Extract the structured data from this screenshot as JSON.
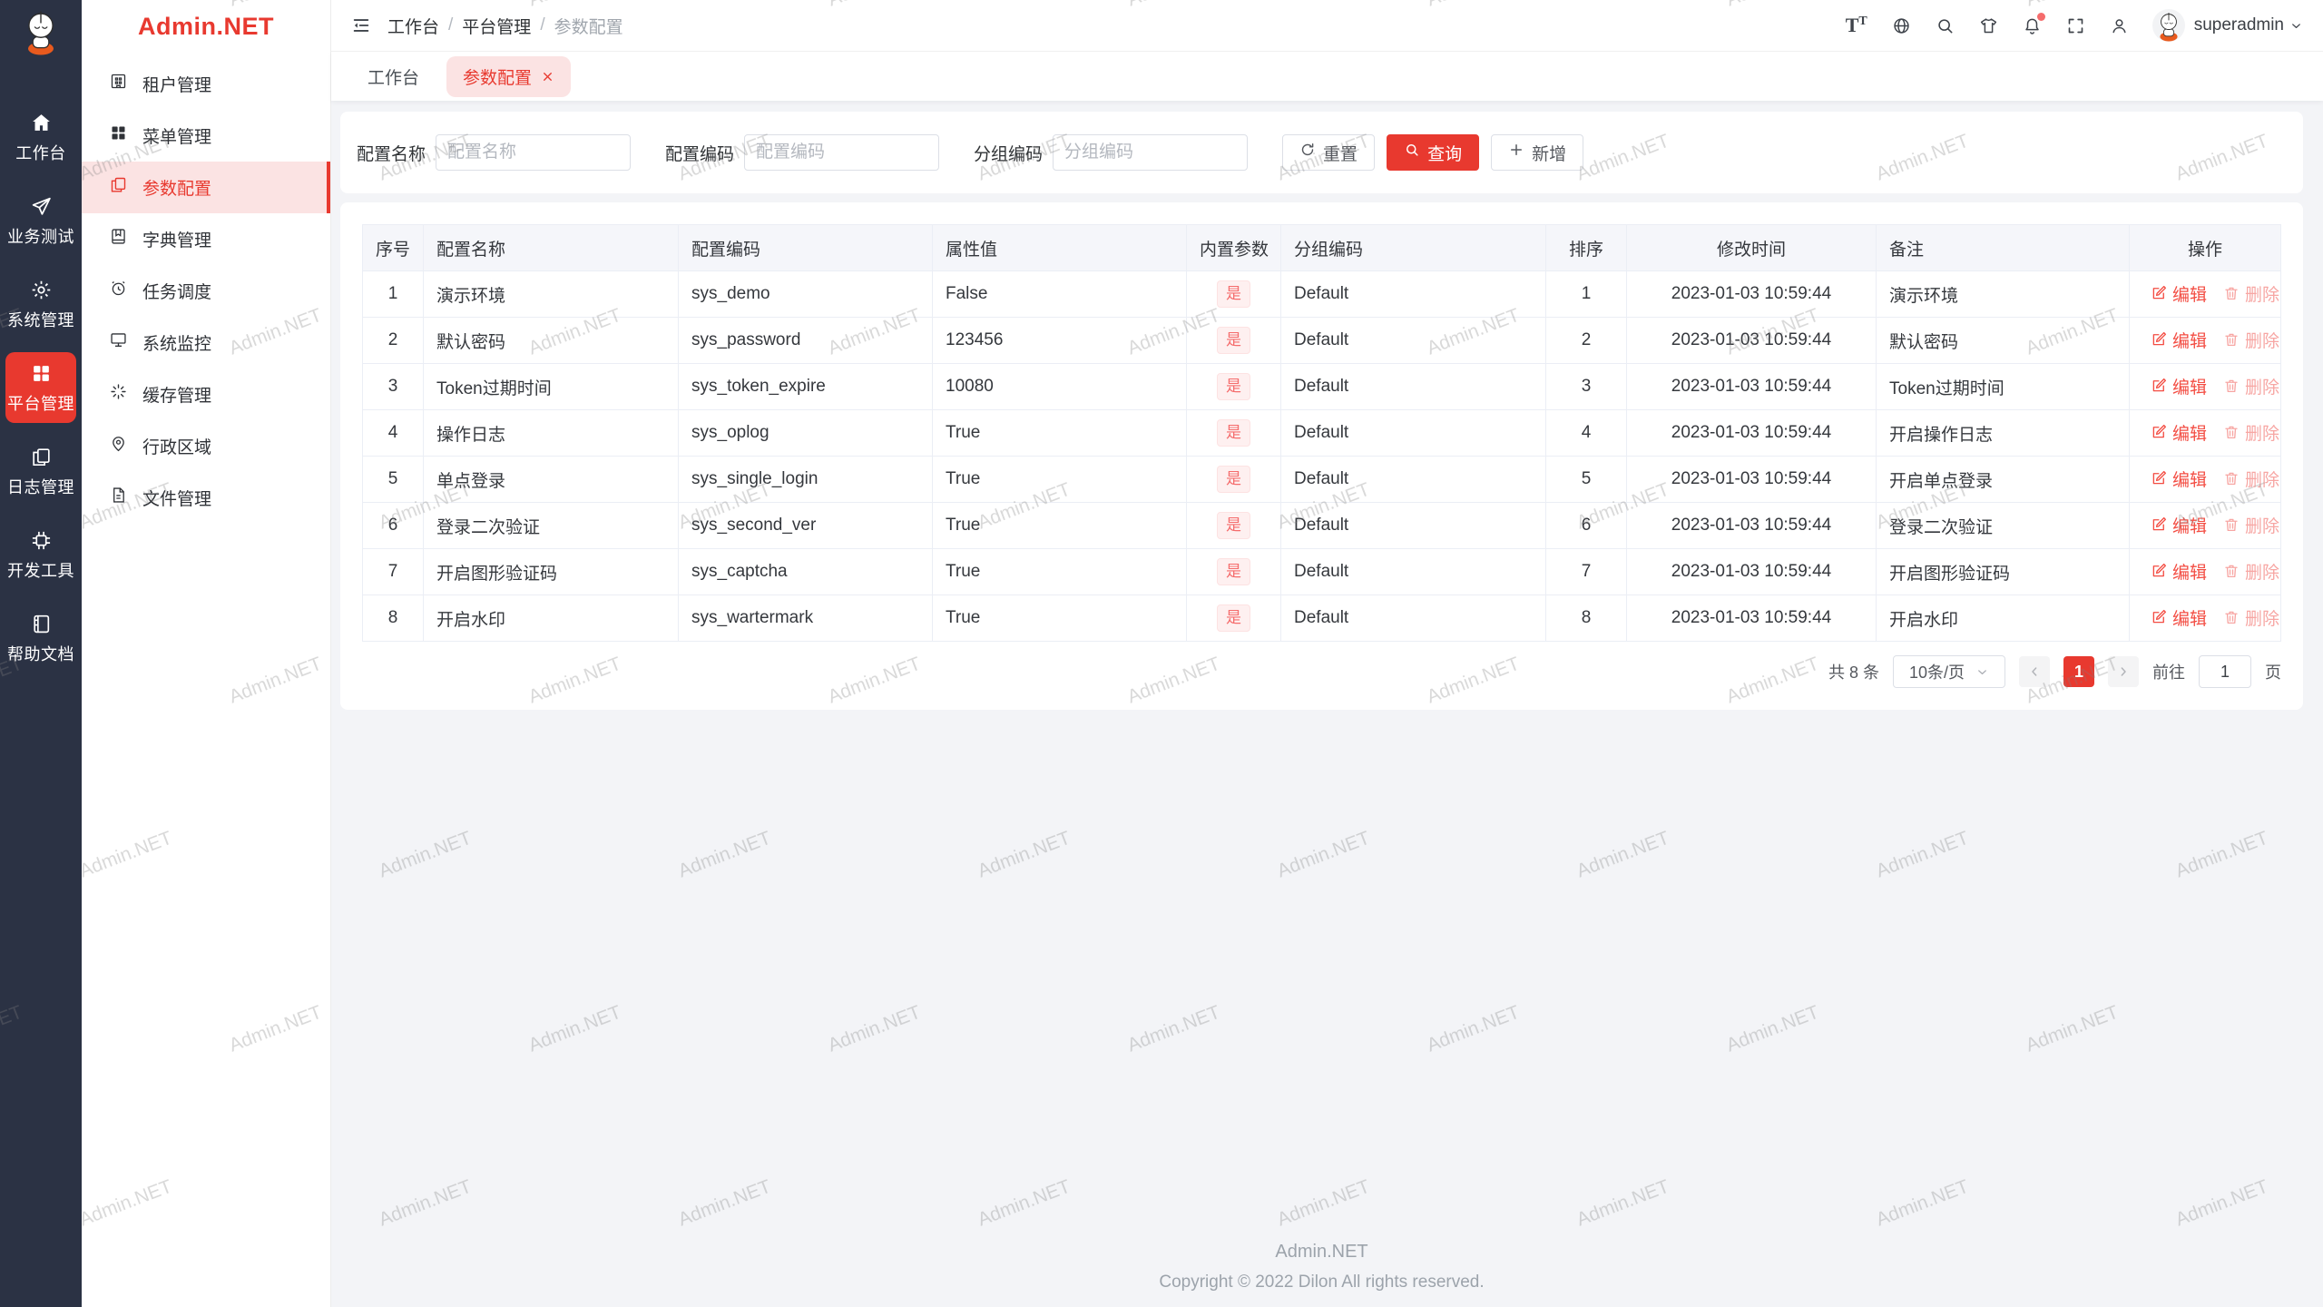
{
  "colors": {
    "primary": "#e8392f",
    "primary_light": "#fbe3e3",
    "rail_bg": "#2b3244",
    "tag_text": "#f56c6c",
    "tag_bg": "#fef0f0"
  },
  "logo": {
    "text": "Admin.NET"
  },
  "rail": {
    "items": [
      {
        "label": "工作台"
      },
      {
        "label": "业务测试"
      },
      {
        "label": "系统管理"
      },
      {
        "label": "平台管理",
        "active": true
      },
      {
        "label": "日志管理"
      },
      {
        "label": "开发工具"
      },
      {
        "label": "帮助文档"
      }
    ]
  },
  "sidebar": {
    "items": [
      {
        "label": "租户管理"
      },
      {
        "label": "菜单管理"
      },
      {
        "label": "参数配置",
        "active": true
      },
      {
        "label": "字典管理"
      },
      {
        "label": "任务调度"
      },
      {
        "label": "系统监控"
      },
      {
        "label": "缓存管理"
      },
      {
        "label": "行政区域"
      },
      {
        "label": "文件管理"
      }
    ]
  },
  "header": {
    "breadcrumb": [
      "工作台",
      "平台管理",
      "参数配置"
    ],
    "font_icon_large": "T",
    "font_icon_small": "T",
    "username": "superadmin",
    "notification_dot": true
  },
  "tabs": [
    {
      "label": "工作台",
      "active": false
    },
    {
      "label": "参数配置",
      "active": true,
      "closable": true
    }
  ],
  "filters": {
    "fields": [
      {
        "label": "配置名称",
        "placeholder": "配置名称"
      },
      {
        "label": "配置编码",
        "placeholder": "配置编码"
      },
      {
        "label": "分组编码",
        "placeholder": "分组编码"
      }
    ],
    "reset_label": "重置",
    "query_label": "查询",
    "add_label": "新增"
  },
  "table": {
    "columns": [
      "序号",
      "配置名称",
      "配置编码",
      "属性值",
      "内置参数",
      "分组编码",
      "排序",
      "修改时间",
      "备注",
      "操作"
    ],
    "ops": {
      "edit": "编辑",
      "delete": "删除"
    },
    "rows": [
      {
        "index": "1",
        "name": "演示环境",
        "code": "sys_demo",
        "value": "False",
        "builtin": "是",
        "group": "Default",
        "sort": "1",
        "time": "2023-01-03 10:59:44",
        "remark": "演示环境"
      },
      {
        "index": "2",
        "name": "默认密码",
        "code": "sys_password",
        "value": "123456",
        "builtin": "是",
        "group": "Default",
        "sort": "2",
        "time": "2023-01-03 10:59:44",
        "remark": "默认密码"
      },
      {
        "index": "3",
        "name": "Token过期时间",
        "code": "sys_token_expire",
        "value": "10080",
        "builtin": "是",
        "group": "Default",
        "sort": "3",
        "time": "2023-01-03 10:59:44",
        "remark": "Token过期时间"
      },
      {
        "index": "4",
        "name": "操作日志",
        "code": "sys_oplog",
        "value": "True",
        "builtin": "是",
        "group": "Default",
        "sort": "4",
        "time": "2023-01-03 10:59:44",
        "remark": "开启操作日志"
      },
      {
        "index": "5",
        "name": "单点登录",
        "code": "sys_single_login",
        "value": "True",
        "builtin": "是",
        "group": "Default",
        "sort": "5",
        "time": "2023-01-03 10:59:44",
        "remark": "开启单点登录"
      },
      {
        "index": "6",
        "name": "登录二次验证",
        "code": "sys_second_ver",
        "value": "True",
        "builtin": "是",
        "group": "Default",
        "sort": "6",
        "time": "2023-01-03 10:59:44",
        "remark": "登录二次验证"
      },
      {
        "index": "7",
        "name": "开启图形验证码",
        "code": "sys_captcha",
        "value": "True",
        "builtin": "是",
        "group": "Default",
        "sort": "7",
        "time": "2023-01-03 10:59:44",
        "remark": "开启图形验证码"
      },
      {
        "index": "8",
        "name": "开启水印",
        "code": "sys_wartermark",
        "value": "True",
        "builtin": "是",
        "group": "Default",
        "sort": "8",
        "time": "2023-01-03 10:59:44",
        "remark": "开启水印"
      }
    ]
  },
  "pagination": {
    "total": "共 8 条",
    "page_size": "10条/页",
    "current": "1",
    "goto_label": "前往",
    "goto_value": "1",
    "page_unit": "页"
  },
  "footer": {
    "title": "Admin.NET",
    "copyright": "Copyright © 2022 Dilon All rights reserved."
  },
  "watermark": {
    "text": "Admin.NET"
  }
}
